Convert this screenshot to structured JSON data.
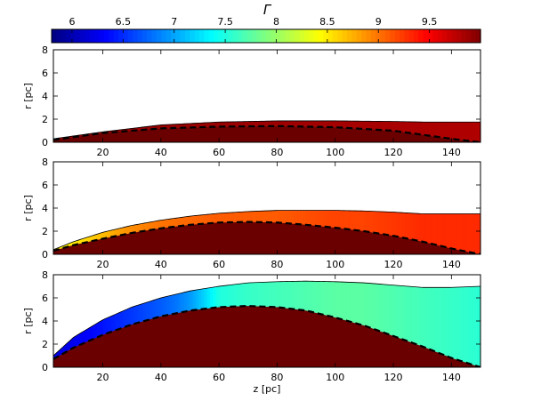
{
  "chart_data": {
    "type": "area",
    "colorbar": {
      "label": "Γ",
      "range": [
        5.8,
        10.0
      ],
      "ticks": [
        6,
        6.5,
        7,
        7.5,
        8,
        8.5,
        9,
        9.5
      ],
      "tick_labels": [
        "6",
        "6.5",
        "7",
        "7.5",
        "8",
        "8.5",
        "9",
        "9.5"
      ],
      "colormap": "jet"
    },
    "core_color": "#6b0000",
    "x": {
      "label": "z [pc]",
      "range": [
        3,
        150
      ],
      "ticks": [
        20,
        40,
        60,
        80,
        100,
        120,
        140
      ],
      "tick_labels": [
        "20",
        "40",
        "60",
        "80",
        "100",
        "120",
        "140"
      ]
    },
    "y_label": "r [pc]",
    "y_ticks": [
      0,
      2,
      4,
      6,
      8
    ],
    "y_tick_labels": [
      "0",
      "2",
      "4",
      "6",
      "8"
    ],
    "ylim": [
      0,
      8
    ],
    "panels": [
      {
        "outer_z": [
          3,
          20,
          40,
          60,
          80,
          100,
          120,
          130,
          140,
          150
        ],
        "outer_r": [
          0.3,
          0.9,
          1.5,
          1.75,
          1.85,
          1.85,
          1.8,
          1.75,
          1.75,
          1.75
        ],
        "inner_z": [
          3,
          20,
          40,
          60,
          80,
          100,
          120,
          140,
          150
        ],
        "inner_r": [
          0.2,
          0.8,
          1.2,
          1.35,
          1.4,
          1.3,
          1.0,
          0.3,
          0.0
        ],
        "gamma_z": [
          3,
          30,
          60,
          100,
          150
        ],
        "gamma_v": [
          9.85,
          9.9,
          9.9,
          9.85,
          9.8
        ]
      },
      {
        "outer_z": [
          3,
          10,
          20,
          30,
          40,
          50,
          60,
          70,
          80,
          90,
          100,
          110,
          120,
          130,
          140,
          150
        ],
        "outer_r": [
          0.4,
          1.1,
          1.9,
          2.5,
          2.95,
          3.3,
          3.55,
          3.7,
          3.8,
          3.8,
          3.8,
          3.75,
          3.65,
          3.5,
          3.5,
          3.5
        ],
        "inner_z": [
          3,
          10,
          20,
          30,
          40,
          50,
          60,
          70,
          80,
          90,
          100,
          110,
          120,
          130,
          140,
          150
        ],
        "inner_r": [
          0.3,
          0.8,
          1.35,
          1.85,
          2.25,
          2.55,
          2.75,
          2.8,
          2.75,
          2.55,
          2.3,
          2.0,
          1.6,
          1.1,
          0.5,
          0.0
        ],
        "gamma_z": [
          3,
          10,
          20,
          30,
          40,
          50,
          60,
          70,
          80,
          90,
          100,
          110,
          120,
          130,
          140,
          150
        ],
        "gamma_v": [
          8.5,
          8.5,
          8.7,
          8.9,
          9.0,
          9.05,
          9.1,
          9.1,
          9.1,
          9.15,
          9.2,
          9.2,
          9.25,
          9.3,
          9.3,
          9.3
        ]
      },
      {
        "outer_z": [
          3,
          10,
          20,
          30,
          40,
          50,
          60,
          70,
          80,
          90,
          100,
          110,
          120,
          130,
          140,
          150
        ],
        "outer_r": [
          1.0,
          2.6,
          4.1,
          5.2,
          6.0,
          6.6,
          7.0,
          7.3,
          7.4,
          7.45,
          7.4,
          7.3,
          7.1,
          6.9,
          6.9,
          7.0
        ],
        "inner_z": [
          3,
          10,
          20,
          30,
          40,
          50,
          60,
          70,
          80,
          90,
          100,
          110,
          120,
          130,
          140,
          150
        ],
        "inner_r": [
          0.7,
          1.7,
          2.8,
          3.7,
          4.4,
          4.9,
          5.2,
          5.3,
          5.2,
          4.9,
          4.3,
          3.6,
          2.7,
          1.8,
          0.8,
          0.0
        ],
        "gamma_z": [
          3,
          10,
          20,
          30,
          40,
          45,
          50,
          55,
          60,
          70,
          80,
          90,
          100,
          110,
          120,
          130,
          140,
          150
        ],
        "gamma_v": [
          6.2,
          6.25,
          6.4,
          6.55,
          6.7,
          6.8,
          6.95,
          7.2,
          7.5,
          7.6,
          7.65,
          7.7,
          7.75,
          7.75,
          7.7,
          7.65,
          7.6,
          7.55
        ]
      }
    ]
  }
}
